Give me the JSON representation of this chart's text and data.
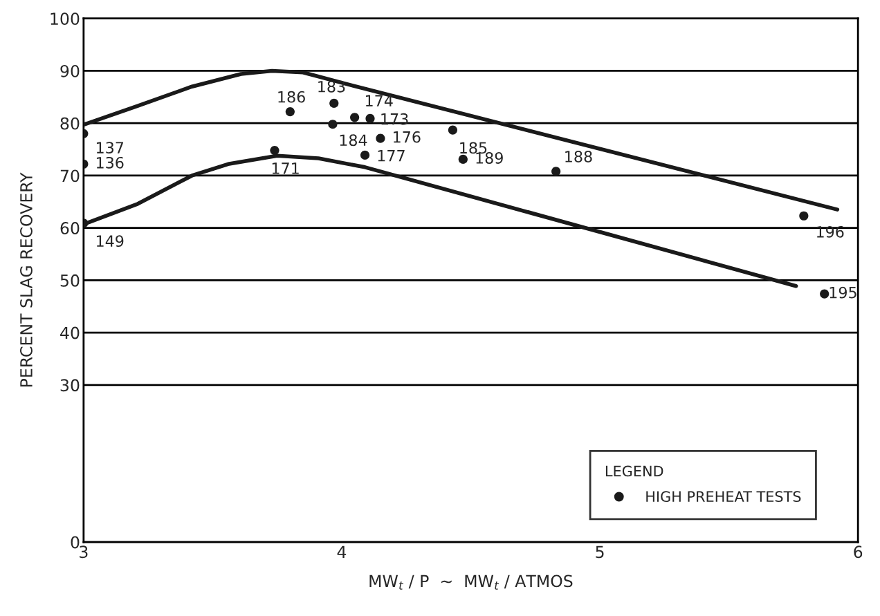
{
  "chart_data": {
    "type": "scatter",
    "xlabel": "MW$_{t}$ / P  ~  MW$_{t}$ / ATMOS",
    "ylabel": "PERCENT SLAG RECOVERY",
    "legend_title": "LEGEND",
    "xlim": [
      3,
      6
    ],
    "xticks": [
      3,
      4,
      5,
      6
    ],
    "ylim": [
      0,
      100
    ],
    "yticks": [
      0,
      30,
      40,
      50,
      60,
      70,
      80,
      90,
      100
    ],
    "grid": "y",
    "legend": "bottom right",
    "series": [
      {
        "name": "HIGH PREHEAT TESTS",
        "marker": "circle",
        "color": "#1a1a1a",
        "x": [
          3.0,
          3.0,
          3.0,
          3.74,
          3.8,
          3.97,
          3.965,
          4.05,
          4.11,
          4.15,
          4.09,
          4.43,
          4.47,
          4.83,
          5.79,
          5.87
        ],
        "values": [
          78.0,
          72.2,
          60.9,
          74.8,
          82.2,
          83.8,
          79.8,
          81.1,
          80.9,
          77.1,
          73.9,
          78.7,
          73.1,
          70.8,
          62.3,
          47.4
        ]
      },
      {
        "type": "line",
        "color": "#1a1a1a",
        "line_style": "solid",
        "x": [
          3.0,
          3.21,
          3.42,
          3.61,
          3.73,
          3.85,
          4.01,
          5.92
        ],
        "values": [
          79.7,
          83.3,
          87.0,
          89.4,
          90.0,
          89.7,
          87.6,
          63.5
        ]
      },
      {
        "type": "line",
        "color": "#1a1a1a",
        "line_style": "solid",
        "x": [
          3.0,
          3.21,
          3.42,
          3.56,
          3.75,
          3.91,
          4.09,
          5.76
        ],
        "values": [
          60.7,
          64.6,
          70.0,
          72.2,
          73.8,
          73.3,
          71.6,
          48.9
        ]
      }
    ],
    "annotations": [
      {
        "text": "137",
        "x": 3.0,
        "y": 78.0
      },
      {
        "text": "136",
        "x": 3.0,
        "y": 72.2
      },
      {
        "text": "149",
        "x": 3.0,
        "y": 60.9
      },
      {
        "text": "171",
        "x": 3.74,
        "y": 74.8
      },
      {
        "text": "186",
        "x": 3.8,
        "y": 82.2
      },
      {
        "text": "183",
        "x": 3.97,
        "y": 83.8
      },
      {
        "text": "184",
        "x": 3.965,
        "y": 79.8
      },
      {
        "text": "174",
        "x": 4.05,
        "y": 81.1
      },
      {
        "text": "173",
        "x": 4.11,
        "y": 80.9
      },
      {
        "text": "176",
        "x": 4.15,
        "y": 77.1
      },
      {
        "text": "177",
        "x": 4.09,
        "y": 73.9
      },
      {
        "text": "185",
        "x": 4.43,
        "y": 78.7
      },
      {
        "text": "189",
        "x": 4.47,
        "y": 73.1
      },
      {
        "text": "188",
        "x": 4.83,
        "y": 70.8
      },
      {
        "text": "196",
        "x": 5.79,
        "y": 62.3
      },
      {
        "text": "195",
        "x": 5.87,
        "y": 47.4
      }
    ]
  }
}
